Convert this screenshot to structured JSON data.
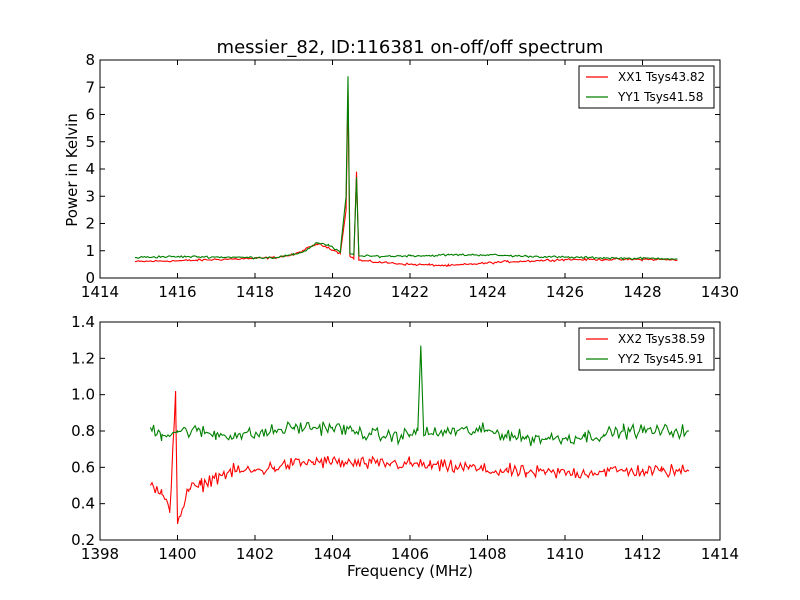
{
  "colors": {
    "xx": "#ff0000",
    "yy": "#008000"
  },
  "chart_data": [
    {
      "type": "line",
      "title": "messier_82, ID:116381 on-off/off spectrum",
      "xlabel": "",
      "ylabel": "Power in Kelvin",
      "xlim": [
        1414,
        1430
      ],
      "ylim": [
        0,
        8
      ],
      "xticks": [
        "1414",
        "1416",
        "1418",
        "1420",
        "1422",
        "1424",
        "1426",
        "1428",
        "1430"
      ],
      "yticks": [
        "0",
        "1",
        "2",
        "3",
        "4",
        "5",
        "6",
        "7",
        "8"
      ],
      "legend": "top-right",
      "grid": false,
      "series": [
        {
          "name": "XX1 Tsys43.82",
          "color": "#ff0000",
          "points": [
            [
              1414.9,
              0.6
            ],
            [
              1415.5,
              0.62
            ],
            [
              1416.0,
              0.63
            ],
            [
              1416.5,
              0.65
            ],
            [
              1417.0,
              0.68
            ],
            [
              1417.5,
              0.7
            ],
            [
              1418.0,
              0.72
            ],
            [
              1418.5,
              0.75
            ],
            [
              1419.0,
              0.85
            ],
            [
              1419.3,
              1.05
            ],
            [
              1419.6,
              1.25
            ],
            [
              1419.9,
              1.12
            ],
            [
              1420.2,
              0.9
            ],
            [
              1420.35,
              2.5
            ],
            [
              1420.4,
              6.8
            ],
            [
              1420.45,
              0.8
            ],
            [
              1420.55,
              0.7
            ],
            [
              1420.62,
              3.9
            ],
            [
              1420.68,
              0.65
            ],
            [
              1421.0,
              0.6
            ],
            [
              1421.5,
              0.55
            ],
            [
              1422.0,
              0.5
            ],
            [
              1422.5,
              0.48
            ],
            [
              1423.0,
              0.45
            ],
            [
              1423.5,
              0.5
            ],
            [
              1424.0,
              0.55
            ],
            [
              1424.5,
              0.6
            ],
            [
              1425.0,
              0.62
            ],
            [
              1425.5,
              0.65
            ],
            [
              1426.0,
              0.68
            ],
            [
              1426.5,
              0.68
            ],
            [
              1427.0,
              0.68
            ],
            [
              1427.5,
              0.68
            ],
            [
              1428.0,
              0.68
            ],
            [
              1428.5,
              0.68
            ],
            [
              1428.9,
              0.65
            ]
          ]
        },
        {
          "name": "YY1 Tsys41.58",
          "color": "#008000",
          "points": [
            [
              1414.9,
              0.75
            ],
            [
              1415.5,
              0.78
            ],
            [
              1416.0,
              0.78
            ],
            [
              1416.5,
              0.78
            ],
            [
              1417.0,
              0.77
            ],
            [
              1417.5,
              0.76
            ],
            [
              1418.0,
              0.75
            ],
            [
              1418.5,
              0.75
            ],
            [
              1419.0,
              0.85
            ],
            [
              1419.3,
              1.0
            ],
            [
              1419.6,
              1.3
            ],
            [
              1419.9,
              1.2
            ],
            [
              1420.2,
              0.95
            ],
            [
              1420.35,
              3.0
            ],
            [
              1420.4,
              7.4
            ],
            [
              1420.45,
              0.9
            ],
            [
              1420.55,
              0.85
            ],
            [
              1420.62,
              3.7
            ],
            [
              1420.68,
              0.8
            ],
            [
              1421.0,
              0.8
            ],
            [
              1421.5,
              0.8
            ],
            [
              1422.0,
              0.82
            ],
            [
              1422.5,
              0.82
            ],
            [
              1423.0,
              0.85
            ],
            [
              1423.5,
              0.85
            ],
            [
              1424.0,
              0.85
            ],
            [
              1424.5,
              0.82
            ],
            [
              1425.0,
              0.8
            ],
            [
              1425.5,
              0.78
            ],
            [
              1426.0,
              0.76
            ],
            [
              1426.5,
              0.75
            ],
            [
              1427.0,
              0.74
            ],
            [
              1427.5,
              0.72
            ],
            [
              1428.0,
              0.72
            ],
            [
              1428.5,
              0.72
            ],
            [
              1428.9,
              0.7
            ]
          ]
        }
      ]
    },
    {
      "type": "line",
      "title": "",
      "xlabel": "Frequency (MHz)",
      "ylabel": "",
      "xlim": [
        1398,
        1414
      ],
      "ylim": [
        0.2,
        1.4
      ],
      "xticks": [
        "1398",
        "1400",
        "1402",
        "1404",
        "1406",
        "1408",
        "1410",
        "1412",
        "1414"
      ],
      "yticks": [
        "0.2",
        "0.4",
        "0.6",
        "0.8",
        "1.0",
        "1.2",
        "1.4"
      ],
      "legend": "top-right",
      "grid": false,
      "series": [
        {
          "name": "XX2 Tsys38.59",
          "color": "#ff0000",
          "points": [
            [
              1399.3,
              0.5
            ],
            [
              1399.6,
              0.45
            ],
            [
              1399.8,
              0.35
            ],
            [
              1399.95,
              1.02
            ],
            [
              1400.0,
              0.3
            ],
            [
              1400.3,
              0.48
            ],
            [
              1400.6,
              0.5
            ],
            [
              1401.0,
              0.55
            ],
            [
              1401.5,
              0.58
            ],
            [
              1402.0,
              0.58
            ],
            [
              1402.5,
              0.6
            ],
            [
              1403.0,
              0.62
            ],
            [
              1403.5,
              0.63
            ],
            [
              1404.0,
              0.63
            ],
            [
              1404.5,
              0.62
            ],
            [
              1405.0,
              0.62
            ],
            [
              1405.5,
              0.62
            ],
            [
              1406.0,
              0.62
            ],
            [
              1406.5,
              0.61
            ],
            [
              1407.0,
              0.6
            ],
            [
              1407.5,
              0.6
            ],
            [
              1408.0,
              0.58
            ],
            [
              1408.5,
              0.58
            ],
            [
              1409.0,
              0.57
            ],
            [
              1409.5,
              0.57
            ],
            [
              1410.0,
              0.57
            ],
            [
              1410.5,
              0.57
            ],
            [
              1411.0,
              0.58
            ],
            [
              1411.5,
              0.58
            ],
            [
              1412.0,
              0.58
            ],
            [
              1412.5,
              0.58
            ],
            [
              1413.2,
              0.58
            ]
          ]
        },
        {
          "name": "YY2 Tsys45.91",
          "color": "#008000",
          "points": [
            [
              1399.3,
              0.82
            ],
            [
              1399.6,
              0.78
            ],
            [
              1400.0,
              0.8
            ],
            [
              1400.5,
              0.8
            ],
            [
              1401.0,
              0.78
            ],
            [
              1401.5,
              0.78
            ],
            [
              1402.0,
              0.78
            ],
            [
              1402.5,
              0.8
            ],
            [
              1403.0,
              0.82
            ],
            [
              1403.5,
              0.82
            ],
            [
              1404.0,
              0.82
            ],
            [
              1404.5,
              0.8
            ],
            [
              1405.0,
              0.78
            ],
            [
              1405.5,
              0.77
            ],
            [
              1406.0,
              0.78
            ],
            [
              1406.2,
              0.8
            ],
            [
              1406.28,
              1.27
            ],
            [
              1406.35,
              0.8
            ],
            [
              1406.6,
              0.78
            ],
            [
              1407.0,
              0.8
            ],
            [
              1407.5,
              0.8
            ],
            [
              1408.0,
              0.8
            ],
            [
              1408.5,
              0.78
            ],
            [
              1409.0,
              0.76
            ],
            [
              1409.5,
              0.76
            ],
            [
              1410.0,
              0.76
            ],
            [
              1410.5,
              0.77
            ],
            [
              1411.0,
              0.78
            ],
            [
              1411.5,
              0.8
            ],
            [
              1412.0,
              0.8
            ],
            [
              1412.5,
              0.8
            ],
            [
              1413.2,
              0.8
            ]
          ]
        }
      ]
    }
  ]
}
